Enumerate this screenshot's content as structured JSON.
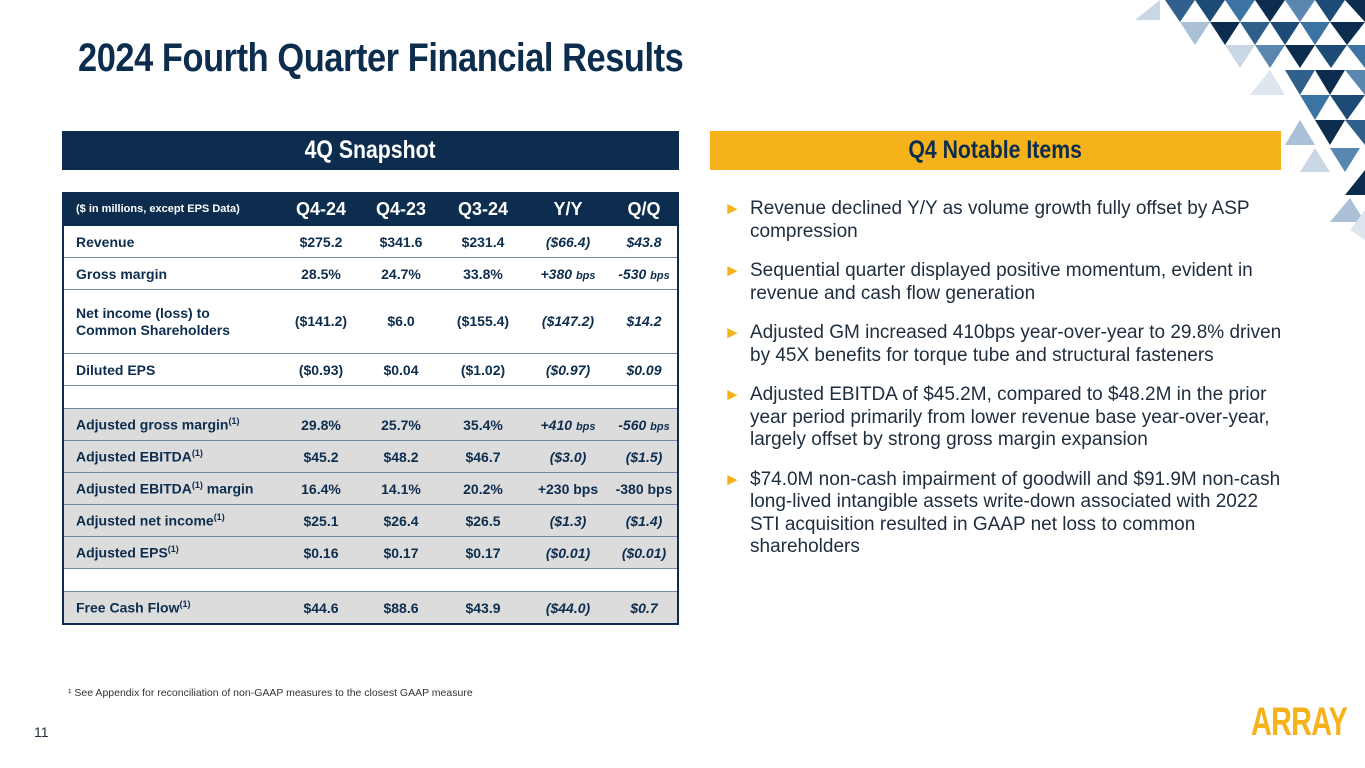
{
  "slide": {
    "title": "2024 Fourth Quarter Financial Results",
    "page_number": "11",
    "logo_text": "ARRAY",
    "footnote": "¹ See Appendix for reconciliation of non-GAAP measures to the closest GAAP measure"
  },
  "snapshot": {
    "header": "4Q Snapshot",
    "columns": [
      "($ in millions, except EPS Data)",
      "Q4-24",
      "Q4-23",
      "Q3-24",
      "Y/Y",
      "Q/Q"
    ],
    "rows": [
      {
        "label": "Revenue",
        "values": [
          "$275.2",
          "$341.6",
          "$231.4",
          "($66.4)",
          "$43.8"
        ]
      },
      {
        "label": "Gross margin",
        "values": [
          "28.5%",
          "24.7%",
          "33.8%",
          "+380",
          "-530"
        ],
        "yy_unit": "bps",
        "qq_unit": "bps"
      },
      {
        "label_line1": "Net income (loss) to",
        "label_line2": "Common Shareholders",
        "values": [
          "($141.2)",
          "$6.0",
          "($155.4)",
          "($147.2)",
          "$14.2"
        ]
      },
      {
        "label": "Diluted EPS",
        "values": [
          "($0.93)",
          "$0.04",
          "($1.02)",
          "($0.97)",
          "$0.09"
        ]
      },
      {
        "label": "Adjusted gross margin",
        "sup": "(1)",
        "values": [
          "29.8%",
          "25.7%",
          "35.4%",
          "+410",
          "-560"
        ],
        "yy_unit": "bps",
        "qq_unit": "bps"
      },
      {
        "label": "Adjusted EBITDA",
        "sup": "(1)",
        "values": [
          "$45.2",
          "$48.2",
          "$46.7",
          "($3.0)",
          "($1.5)"
        ]
      },
      {
        "label": "Adjusted EBITDA",
        "sup": "(1)",
        "label_suffix": " margin",
        "values": [
          "16.4%",
          "14.1%",
          "20.2%",
          "+230 bps",
          "-380 bps"
        ]
      },
      {
        "label": "Adjusted net income",
        "sup": "(1)",
        "values": [
          "$25.1",
          "$26.4",
          "$26.5",
          "($1.3)",
          "($1.4)"
        ]
      },
      {
        "label": "Adjusted EPS",
        "sup": "(1)",
        "values": [
          "$0.16",
          "$0.17",
          "$0.17",
          "($0.01)",
          "($0.01)"
        ]
      },
      {
        "label": "Free Cash Flow",
        "sup": "(1)",
        "values": [
          "$44.6",
          "$88.6",
          "$43.9",
          "($44.0)",
          "$0.7"
        ]
      }
    ]
  },
  "notable": {
    "header": "Q4 Notable Items",
    "items": [
      "Revenue declined Y/Y as  volume growth fully offset by ASP compression",
      "Sequential  quarter displayed positive momentum, evident in revenue and cash flow generation",
      "Adjusted GM increased 410bps year-over-year to 29.8% driven by 45X benefits for torque tube and structural fasteners",
      "Adjusted EBITDA of $45.2M, compared to $48.2M in the prior year period primarily from lower revenue base year-over-year, largely offset by strong gross margin expansion",
      "$74.0M non-cash impairment of goodwill and $91.9M non-cash long-lived intangible assets write-down associated with 2022 STI acquisition resulted in GAAP net loss to common shareholders"
    ]
  },
  "colors": {
    "navy": "#0d2d4e",
    "gold": "#f5b21a",
    "shade": "#dcdcdc"
  }
}
